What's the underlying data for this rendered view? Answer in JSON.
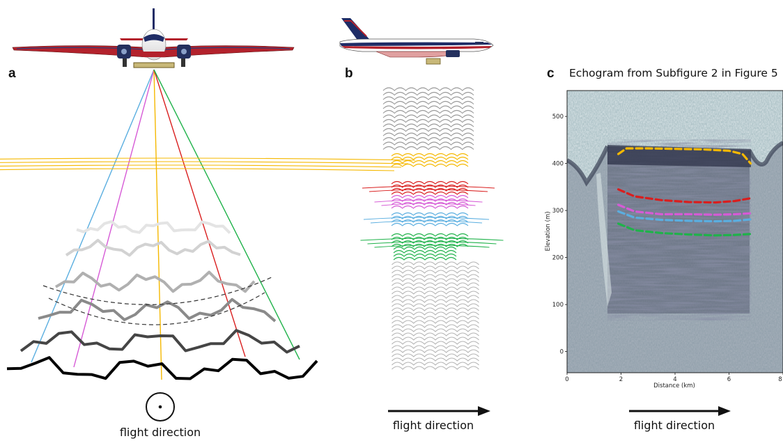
{
  "panels": {
    "a": {
      "label": "a",
      "caption": "flight direction"
    },
    "b": {
      "label": "b",
      "caption": "flight direction"
    },
    "c": {
      "label": "c",
      "caption": "flight direction",
      "title": "Echogram from Subfigure 2 in Figure 5"
    }
  },
  "colors": {
    "blue": "#5aaee0",
    "magenta": "#d65ad6",
    "yellow": "#f5b800",
    "red": "#d91e1e",
    "green": "#1fb24a",
    "gray": "#9a9a9a"
  },
  "chart_data": {
    "type": "heatmap",
    "title": "Echogram from Subfigure 2 in Figure 5",
    "xlabel": "Distance (km)",
    "ylabel": "Elevation (m)",
    "xlim": [
      0,
      8
    ],
    "ylim": [
      -45,
      555
    ],
    "xticks": [
      0,
      2,
      4,
      6,
      8
    ],
    "yticks": [
      0,
      100,
      200,
      300,
      400,
      500
    ],
    "layers": [
      {
        "color": "#f5b800",
        "x": [
          1.9,
          2.2,
          3,
          4,
          5,
          6,
          6.5,
          6.8
        ],
        "y": [
          420,
          432,
          432,
          431,
          430,
          427,
          420,
          400
        ]
      },
      {
        "color": "#d91e1e",
        "x": [
          1.9,
          2.5,
          3.5,
          4.5,
          5.5,
          6.2,
          6.8
        ],
        "y": [
          345,
          330,
          322,
          318,
          317,
          320,
          326
        ]
      },
      {
        "color": "#d65ad6",
        "x": [
          1.9,
          2.5,
          3.5,
          4.5,
          5.5,
          6.2,
          6.8
        ],
        "y": [
          312,
          298,
          292,
          292,
          291,
          292,
          294
        ]
      },
      {
        "color": "#5aaee0",
        "x": [
          1.9,
          2.5,
          3.5,
          4.5,
          5.5,
          6.2,
          6.8
        ],
        "y": [
          298,
          285,
          280,
          278,
          277,
          278,
          281
        ]
      },
      {
        "color": "#1fb24a",
        "x": [
          1.9,
          2.5,
          3.5,
          4.5,
          5.5,
          6.2,
          6.8
        ],
        "y": [
          272,
          258,
          252,
          249,
          247,
          248,
          250
        ]
      }
    ]
  }
}
